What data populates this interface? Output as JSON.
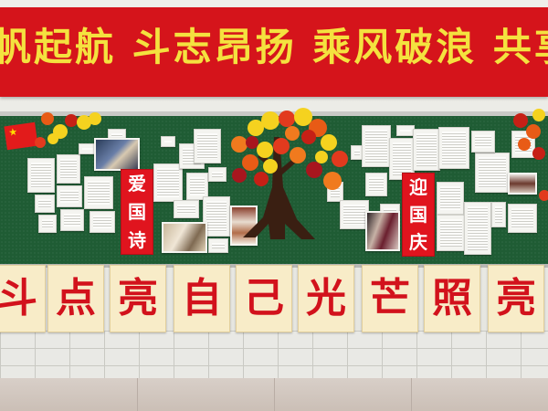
{
  "banner": {
    "text": "帆起航 斗志昂扬 乘风破浪 共享",
    "background": "#d5141b",
    "text_color": "#f4e23f"
  },
  "board": {
    "background": "#1f5c34",
    "left_sign": [
      "爱",
      "国",
      "诗"
    ],
    "right_sign": [
      "迎",
      "国",
      "庆"
    ]
  },
  "cards": [
    "斗",
    "点",
    "亮",
    "自",
    "己",
    "光",
    "芒",
    "照",
    "亮"
  ],
  "icons": [
    "chinese-flag-icon",
    "autumn-tree-icon",
    "maple-leaf-icon"
  ]
}
